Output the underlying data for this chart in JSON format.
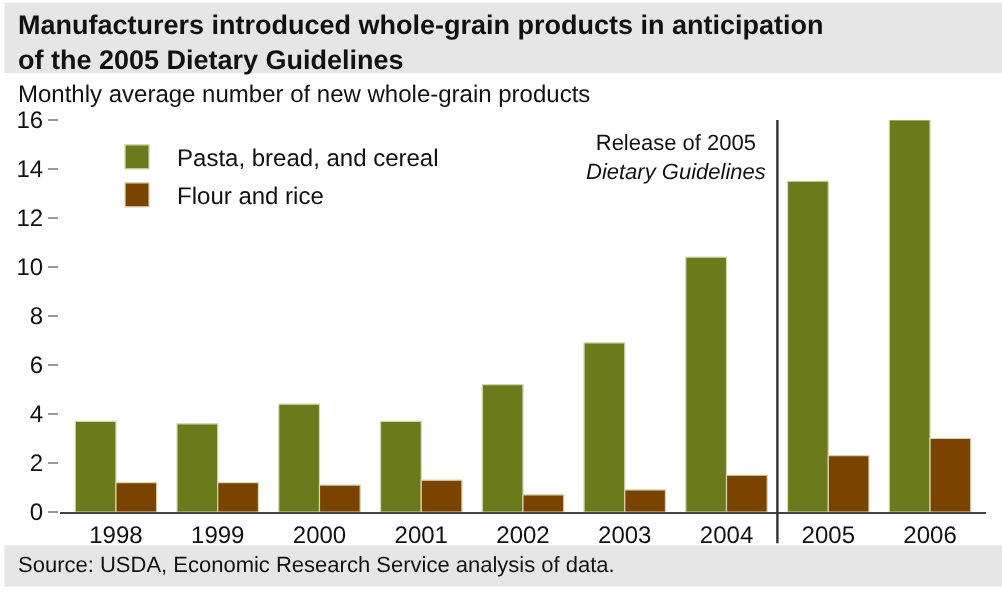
{
  "chart_data": {
    "type": "bar",
    "title": "Manufacturers introduced whole-grain products in anticipation\nof the 2005 Dietary Guidelines",
    "ylabel": "Monthly average number of new whole-grain products",
    "x": [
      1998,
      1999,
      2000,
      2001,
      2002,
      2003,
      2004,
      2005,
      2006
    ],
    "xlim": [
      1997.45,
      2006.55
    ],
    "xticks": [
      1998,
      1999,
      2000,
      2001,
      2002,
      2003,
      2004,
      2005,
      2006
    ],
    "series": [
      {
        "name": "Pasta, bread, and cereal",
        "color": "#6b7a1a",
        "values": [
          3.7,
          3.6,
          4.4,
          3.7,
          5.2,
          6.9,
          10.4,
          13.5,
          16.0
        ]
      },
      {
        "name": "Flour and rice",
        "color": "#7a4400",
        "values": [
          1.2,
          1.2,
          1.1,
          1.3,
          0.7,
          0.9,
          1.5,
          2.3,
          3.0
        ]
      }
    ],
    "ylim": [
      0,
      16
    ],
    "yticks": [
      0,
      2,
      4,
      6,
      8,
      10,
      12,
      14,
      16
    ],
    "legend": "top left",
    "ref_lines": [
      {
        "axis": "x",
        "value": 2004.5,
        "label": "Release of 2005\nDietary Guidelines",
        "color": "#333333"
      }
    ],
    "annotations": [
      "Source: USDA, Economic Research Service analysis of data."
    ]
  }
}
